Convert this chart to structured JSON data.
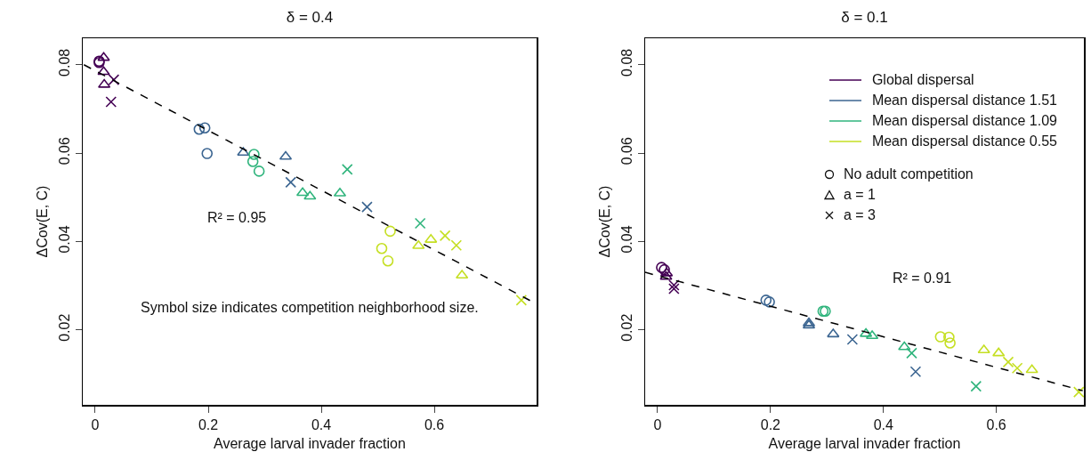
{
  "chart_data": [
    {
      "type": "scatter",
      "title": "δ = 0.4",
      "xlabel": "Average larval invader fraction",
      "ylabel": "ΔCov(E, C)",
      "xlim": [
        -0.022,
        0.781
      ],
      "ylim": [
        0.003,
        0.086
      ],
      "xticks": [
        0,
        0.2,
        0.4,
        0.6
      ],
      "yticks": [
        0.02,
        0.04,
        0.06,
        0.08
      ],
      "grid": false,
      "legend": false,
      "annotations": [
        "R² = 0.95",
        "Symbol size indicates competition neighborhood size."
      ],
      "series": [
        {
          "color": "#440154",
          "x": [
            0.007,
            0.007,
            0.015,
            0.015,
            0.016,
            0.033,
            0.028
          ],
          "values": [
            0.0808,
            0.0805,
            0.0816,
            0.0784,
            0.0755,
            0.0766,
            0.0716
          ],
          "marker": [
            "circle",
            "circle",
            "triangle",
            "triangle",
            "triangle",
            "cross",
            "cross"
          ]
        },
        {
          "color": "#3b6591",
          "x": [
            0.194,
            0.184,
            0.198,
            0.262,
            0.337,
            0.346,
            0.481
          ],
          "values": [
            0.0657,
            0.0654,
            0.0599,
            0.0601,
            0.0592,
            0.0534,
            0.0478
          ],
          "marker": [
            "circle",
            "circle",
            "circle",
            "triangle",
            "triangle",
            "cross",
            "cross"
          ]
        },
        {
          "color": "#2fb47c",
          "x": [
            0.279,
            0.281,
            0.29,
            0.367,
            0.38,
            0.433,
            0.446,
            0.575
          ],
          "values": [
            0.0581,
            0.0597,
            0.0559,
            0.051,
            0.0502,
            0.0509,
            0.0563,
            0.0441
          ],
          "marker": [
            "circle",
            "circle",
            "circle",
            "triangle",
            "triangle",
            "triangle",
            "cross",
            "cross"
          ]
        },
        {
          "color": "#c5df23",
          "x": [
            0.522,
            0.507,
            0.518,
            0.572,
            0.594,
            0.649,
            0.619,
            0.639,
            0.754
          ],
          "values": [
            0.0423,
            0.0384,
            0.0356,
            0.039,
            0.0404,
            0.0323,
            0.0413,
            0.0391,
            0.0267
          ],
          "marker": [
            "circle",
            "circle",
            "circle",
            "triangle",
            "triangle",
            "triangle",
            "cross",
            "cross",
            "cross"
          ]
        },
        {
          "type": "line",
          "color": "#000000",
          "line_style": "dashed",
          "x": [
            -0.02,
            0.78
          ],
          "values": [
            0.08,
            0.0259
          ]
        }
      ]
    },
    {
      "type": "scatter",
      "title": "δ = 0.1",
      "xlabel": "Average larval invader fraction",
      "ylabel": "ΔCov(E, C)",
      "xlim": [
        -0.022,
        0.755
      ],
      "ylim": [
        0.003,
        0.086
      ],
      "xticks": [
        0,
        0.2,
        0.4,
        0.6
      ],
      "yticks": [
        0.02,
        0.04,
        0.06,
        0.08
      ],
      "grid": false,
      "legend": "top right",
      "annotations": [
        "R² = 0.91",
        "No adult competition",
        "a = 1",
        "a = 3"
      ],
      "series": [
        {
          "name": "Global dispersal",
          "color": "#440154",
          "x": [
            0.007,
            0.012,
            0.016,
            0.015,
            0.029,
            0.029
          ],
          "values": [
            0.0341,
            0.0336,
            0.0328,
            0.032,
            0.0293,
            0.0301
          ],
          "marker": [
            "circle",
            "circle",
            "triangle",
            "triangle",
            "cross",
            "cross"
          ]
        },
        {
          "name": "Mean dispersal distance 1.51",
          "color": "#3b6591",
          "x": [
            0.192,
            0.198,
            0.268,
            0.268,
            0.311,
            0.345,
            0.457
          ],
          "values": [
            0.0267,
            0.0263,
            0.0215,
            0.021,
            0.019,
            0.0178,
            0.0105
          ],
          "marker": [
            "circle",
            "circle",
            "triangle",
            "triangle",
            "triangle",
            "cross",
            "cross"
          ]
        },
        {
          "name": "Mean dispersal distance 1.09",
          "color": "#2fb47c",
          "x": [
            0.293,
            0.297,
            0.369,
            0.38,
            0.437,
            0.45,
            0.564
          ],
          "values": [
            0.0242,
            0.0242,
            0.0191,
            0.0186,
            0.0161,
            0.0147,
            0.0072
          ],
          "marker": [
            "circle",
            "circle",
            "triangle",
            "triangle",
            "triangle",
            "cross",
            "cross"
          ]
        },
        {
          "name": "Mean dispersal distance 0.55",
          "color": "#c5df23",
          "x": [
            0.501,
            0.516,
            0.518,
            0.578,
            0.604,
            0.663,
            0.621,
            0.637,
            0.746
          ],
          "values": [
            0.0184,
            0.0183,
            0.017,
            0.0154,
            0.0147,
            0.0109,
            0.0127,
            0.0113,
            0.0059
          ],
          "marker": [
            "circle",
            "circle",
            "circle",
            "triangle",
            "triangle",
            "triangle",
            "cross",
            "cross",
            "cross"
          ]
        },
        {
          "type": "line",
          "color": "#000000",
          "line_style": "dashed",
          "x": [
            -0.022,
            0.753
          ],
          "values": [
            0.033,
            0.0062
          ]
        }
      ]
    }
  ]
}
